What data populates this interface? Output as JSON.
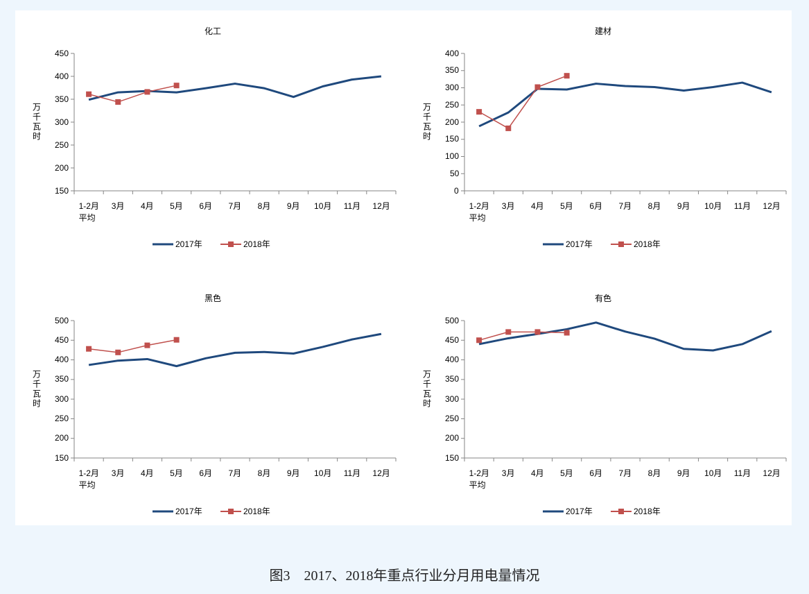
{
  "chart_data": [
    {
      "type": "line",
      "title": "化工",
      "ylabel": "万千瓦时",
      "categories": [
        "1-2月\n平均",
        "3月",
        "4月",
        "5月",
        "6月",
        "7月",
        "8月",
        "9月",
        "10月",
        "11月",
        "12月"
      ],
      "series": [
        {
          "name": "2017年",
          "color": "#1f497d",
          "values": [
            349,
            365,
            368,
            365,
            374,
            384,
            374,
            355,
            378,
            393,
            400
          ]
        },
        {
          "name": "2018年",
          "color": "#c0504d",
          "marker": "square",
          "values": [
            361,
            344,
            366,
            380,
            null,
            null,
            null,
            null,
            null,
            null,
            null
          ]
        }
      ],
      "ylim": [
        150,
        450
      ],
      "yticks": [
        150,
        200,
        250,
        300,
        350,
        400,
        450
      ]
    },
    {
      "type": "line",
      "title": "建材",
      "ylabel": "万千瓦时",
      "categories": [
        "1-2月\n平均",
        "3月",
        "4月",
        "5月",
        "6月",
        "7月",
        "8月",
        "9月",
        "10月",
        "11月",
        "12月"
      ],
      "series": [
        {
          "name": "2017年",
          "color": "#1f497d",
          "values": [
            188,
            228,
            297,
            295,
            312,
            305,
            302,
            292,
            302,
            315,
            287
          ]
        },
        {
          "name": "2018年",
          "color": "#c0504d",
          "marker": "square",
          "values": [
            230,
            182,
            302,
            335,
            null,
            null,
            null,
            null,
            null,
            null,
            null
          ]
        }
      ],
      "ylim": [
        0,
        400
      ],
      "yticks": [
        0,
        50,
        100,
        150,
        200,
        250,
        300,
        350,
        400
      ]
    },
    {
      "type": "line",
      "title": "黑色",
      "ylabel": "万千瓦时",
      "categories": [
        "1-2月\n平均",
        "3月",
        "4月",
        "5月",
        "6月",
        "7月",
        "8月",
        "9月",
        "10月",
        "11月",
        "12月"
      ],
      "series": [
        {
          "name": "2017年",
          "color": "#1f497d",
          "values": [
            387,
            398,
            402,
            384,
            404,
            418,
            420,
            416,
            433,
            452,
            466
          ]
        },
        {
          "name": "2018年",
          "color": "#c0504d",
          "marker": "square",
          "values": [
            428,
            419,
            437,
            451,
            null,
            null,
            null,
            null,
            null,
            null,
            null
          ]
        }
      ],
      "ylim": [
        150,
        500
      ],
      "yticks": [
        150,
        200,
        250,
        300,
        350,
        400,
        450,
        500
      ]
    },
    {
      "type": "line",
      "title": "有色",
      "ylabel": "万千瓦时",
      "categories": [
        "1-2月\n平均",
        "3月",
        "4月",
        "5月",
        "6月",
        "7月",
        "8月",
        "9月",
        "10月",
        "11月",
        "12月"
      ],
      "series": [
        {
          "name": "2017年",
          "color": "#1f497d",
          "values": [
            440,
            455,
            466,
            478,
            495,
            472,
            454,
            428,
            424,
            440,
            473
          ]
        },
        {
          "name": "2018年",
          "color": "#c0504d",
          "marker": "square",
          "values": [
            450,
            471,
            471,
            469,
            null,
            null,
            null,
            null,
            null,
            null,
            null
          ]
        }
      ],
      "ylim": [
        150,
        500
      ],
      "yticks": [
        150,
        200,
        250,
        300,
        350,
        400,
        450,
        500
      ]
    }
  ],
  "caption": "图3　2017、2018年重点行业分月用电量情况"
}
